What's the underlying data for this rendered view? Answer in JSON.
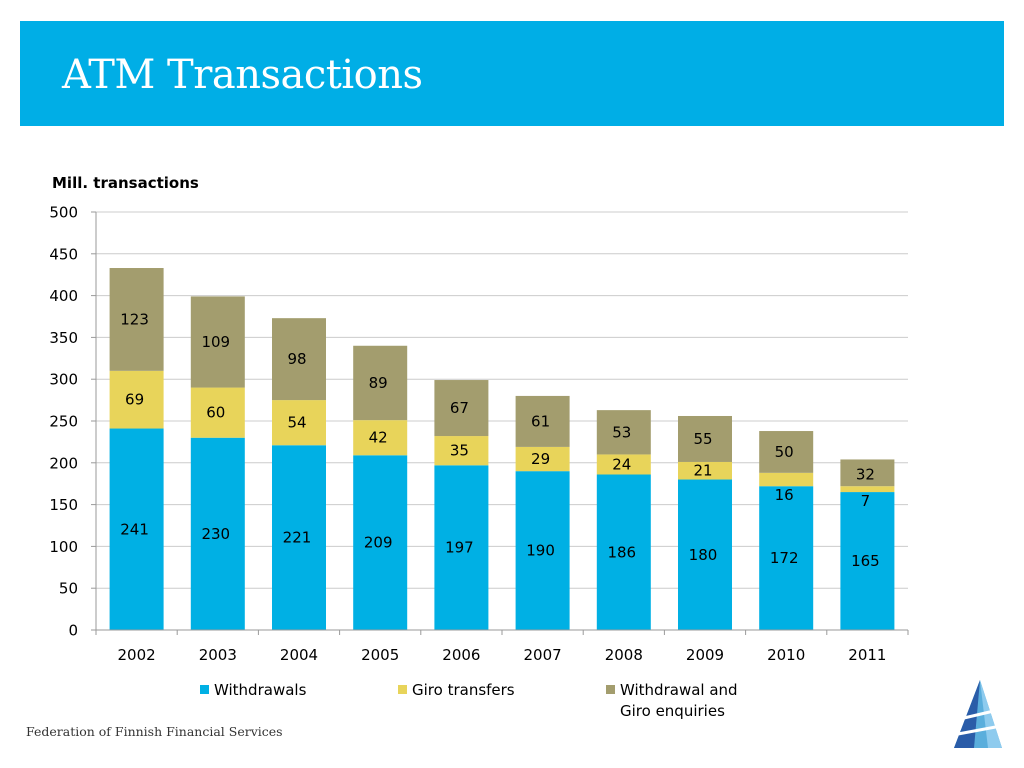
{
  "header": {
    "title": "ATM Transactions"
  },
  "footer": {
    "text": "Federation of Finnish Financial Services"
  },
  "colors": {
    "header_band": "#00aee6",
    "withdrawals": "#00b0e4",
    "giro_transfers": "#e8d45a",
    "withdrawal_and_giro_enquiries": "#a39d6e",
    "grid": "#cccccc",
    "axis": "#9a9a9a"
  },
  "logo": {
    "icon": "pyramid-logo-icon"
  },
  "chart_data": {
    "type": "bar",
    "stacked": true,
    "title": "Mill. transactions",
    "xlabel": "",
    "ylabel": "",
    "categories": [
      "2002",
      "2003",
      "2004",
      "2005",
      "2006",
      "2007",
      "2008",
      "2009",
      "2010",
      "2011"
    ],
    "ylim": [
      0,
      500
    ],
    "yticks": [
      0,
      50,
      100,
      150,
      200,
      250,
      300,
      350,
      400,
      450,
      500
    ],
    "grid": true,
    "legend_position": "bottom",
    "series": [
      {
        "name": "Withdrawals",
        "color": "#00b0e4",
        "values": [
          241,
          230,
          221,
          209,
          197,
          190,
          186,
          180,
          172,
          165
        ]
      },
      {
        "name": "Giro transfers",
        "color": "#e8d45a",
        "values": [
          69,
          60,
          54,
          42,
          35,
          29,
          24,
          21,
          16,
          7
        ]
      },
      {
        "name": "Withdrawal and Giro enquiries",
        "legend_lines": [
          "Withdrawal and",
          "Giro enquiries"
        ],
        "color": "#a39d6e",
        "values": [
          123,
          109,
          98,
          89,
          67,
          61,
          53,
          55,
          50,
          32
        ]
      }
    ]
  }
}
